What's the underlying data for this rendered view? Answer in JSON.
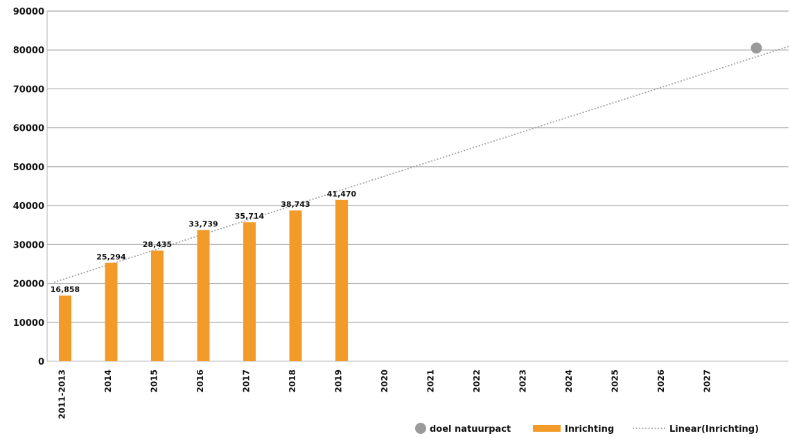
{
  "chart_data": {
    "type": "bar",
    "categories": [
      "2011-2013",
      "2014",
      "2015",
      "2016",
      "2017",
      "2018",
      "2019",
      "2020",
      "2021",
      "2022",
      "2023",
      "2024",
      "2025",
      "2026",
      "2027",
      ""
    ],
    "series": [
      {
        "name": "Inrichting",
        "type": "bar",
        "color": "#f39b28",
        "values": [
          16858,
          25294,
          28435,
          33739,
          35714,
          38743,
          41470,
          null,
          null,
          null,
          null,
          null,
          null,
          null,
          null,
          null
        ],
        "labels": [
          "16,858",
          "25,294",
          "28,435",
          "33,739",
          "35,714",
          "38,743",
          "41,470",
          "",
          "",
          "",
          "",
          "",
          "",
          "",
          "",
          ""
        ]
      },
      {
        "name": "doel natuurpact",
        "type": "point",
        "color": "#9a9a9a",
        "values": [
          null,
          null,
          null,
          null,
          null,
          null,
          null,
          null,
          null,
          null,
          null,
          null,
          null,
          null,
          null,
          80500
        ]
      },
      {
        "name": "Linear(Inrichting)",
        "type": "trendline",
        "style": "dotted",
        "color": "#a0a0a0",
        "start_value": 20300,
        "end_value": 80900
      }
    ],
    "yticks": [
      "0",
      "10000",
      "20000",
      "30000",
      "40000",
      "50000",
      "60000",
      "70000",
      "80000",
      "90000"
    ],
    "ylim": [
      0,
      90000
    ],
    "grid": true,
    "legend_position": "bottom-right"
  }
}
